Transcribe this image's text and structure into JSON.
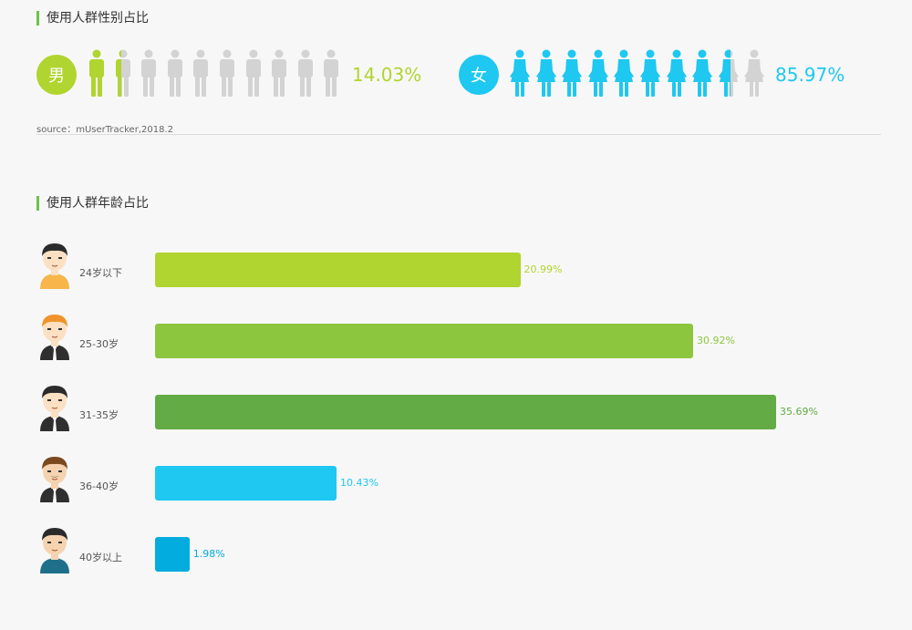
{
  "titles": {
    "gender": "使用人群性别占比",
    "age": "使用人群年龄占比"
  },
  "gender": {
    "male": {
      "badge": "男",
      "percent_label": "14.03%",
      "share": 0.1403,
      "color": "#b0d430"
    },
    "female": {
      "badge": "女",
      "percent_label": "85.97%",
      "share": 0.8597,
      "color": "#1ec8f0"
    },
    "icon_count": 10,
    "inactive_color": "#d3d3d3",
    "male_icon": "male-person-icon",
    "female_icon": "female-person-icon"
  },
  "source": "source：mUserTracker,2018.2",
  "chart_data": {
    "type": "bar",
    "orientation": "horizontal",
    "categories": [
      "24岁以下",
      "25-30岁",
      "31-35岁",
      "36-40岁",
      "40岁以上"
    ],
    "values": [
      20.99,
      30.92,
      35.69,
      10.43,
      1.98
    ],
    "value_labels": [
      "20.99%",
      "30.92%",
      "35.69%",
      "10.43%",
      "1.98%"
    ],
    "colors": [
      "#b0d430",
      "#8cc63e",
      "#62ab45",
      "#1ec8f0",
      "#03acdf"
    ],
    "avatar_icons": [
      "boy-avatar-icon",
      "ginger-man-avatar-icon",
      "suit-man-avatar-icon",
      "mustache-man-avatar-icon",
      "older-man-avatar-icon"
    ],
    "xlim": [
      0,
      40
    ],
    "grid": false,
    "legend": "none"
  }
}
